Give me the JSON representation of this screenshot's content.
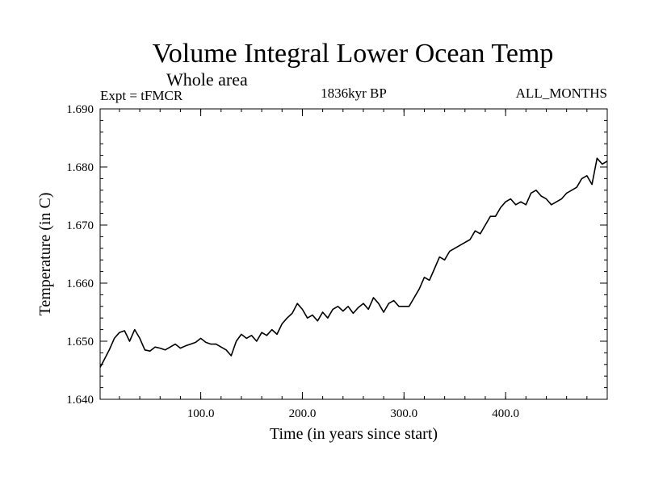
{
  "chart_data": {
    "type": "line",
    "title": "Volume Integral Lower Ocean Temp",
    "subtitle": "Whole area",
    "annotations": {
      "experiment": "Expt = tFMCR",
      "period": "1836kyr BP",
      "months": "ALL_MONTHS"
    },
    "xlabel": "Time (in years since start)",
    "ylabel": "Temperature (in C)",
    "xlim": [
      1,
      500
    ],
    "ylim": [
      1.64,
      1.69
    ],
    "x_ticks": [
      100,
      200,
      300,
      400
    ],
    "x_tick_labels": [
      "100.0",
      "200.0",
      "300.0",
      "400.0"
    ],
    "y_ticks": [
      1.64,
      1.65,
      1.66,
      1.67,
      1.68,
      1.69
    ],
    "y_tick_labels": [
      "1.640",
      "1.650",
      "1.660",
      "1.670",
      "1.680",
      "1.690"
    ],
    "grid": false,
    "series": [
      {
        "name": "Temperature",
        "color": "#000000",
        "x": [
          1,
          5,
          10,
          15,
          20,
          25,
          30,
          35,
          40,
          45,
          50,
          55,
          60,
          65,
          70,
          75,
          80,
          85,
          90,
          95,
          100,
          105,
          110,
          115,
          120,
          125,
          130,
          135,
          140,
          145,
          150,
          155,
          160,
          165,
          170,
          175,
          180,
          185,
          190,
          195,
          200,
          205,
          210,
          215,
          220,
          225,
          230,
          235,
          240,
          245,
          250,
          255,
          260,
          265,
          270,
          275,
          280,
          285,
          290,
          295,
          300,
          305,
          310,
          315,
          320,
          325,
          330,
          335,
          340,
          345,
          350,
          355,
          360,
          365,
          370,
          375,
          380,
          385,
          390,
          395,
          400,
          405,
          410,
          415,
          420,
          425,
          430,
          435,
          440,
          445,
          450,
          455,
          460,
          465,
          470,
          475,
          480,
          485,
          490,
          495,
          500
        ],
        "values": [
          1.6455,
          1.6468,
          1.6485,
          1.6505,
          1.6515,
          1.6518,
          1.65,
          1.652,
          1.6505,
          1.6485,
          1.6483,
          1.649,
          1.6488,
          1.6485,
          1.649,
          1.6495,
          1.6488,
          1.6492,
          1.6495,
          1.6498,
          1.6505,
          1.6498,
          1.6495,
          1.6495,
          1.649,
          1.6485,
          1.6475,
          1.65,
          1.6512,
          1.6505,
          1.651,
          1.65,
          1.6515,
          1.651,
          1.652,
          1.6512,
          1.653,
          1.654,
          1.6548,
          1.6565,
          1.6555,
          1.654,
          1.6545,
          1.6535,
          1.655,
          1.654,
          1.6555,
          1.656,
          1.6552,
          1.656,
          1.6548,
          1.6558,
          1.6565,
          1.6555,
          1.6575,
          1.6565,
          1.655,
          1.6565,
          1.657,
          1.656,
          1.656,
          1.656,
          1.6575,
          1.659,
          1.661,
          1.6605,
          1.6625,
          1.6645,
          1.664,
          1.6655,
          1.666,
          1.6665,
          1.667,
          1.6675,
          1.669,
          1.6685,
          1.67,
          1.6715,
          1.6715,
          1.673,
          1.674,
          1.6745,
          1.6735,
          1.674,
          1.6735,
          1.6755,
          1.676,
          1.675,
          1.6745,
          1.6735,
          1.674,
          1.6745,
          1.6755,
          1.676,
          1.6765,
          1.678,
          1.6785,
          1.677,
          1.6815,
          1.6805,
          1.681
        ]
      }
    ]
  }
}
